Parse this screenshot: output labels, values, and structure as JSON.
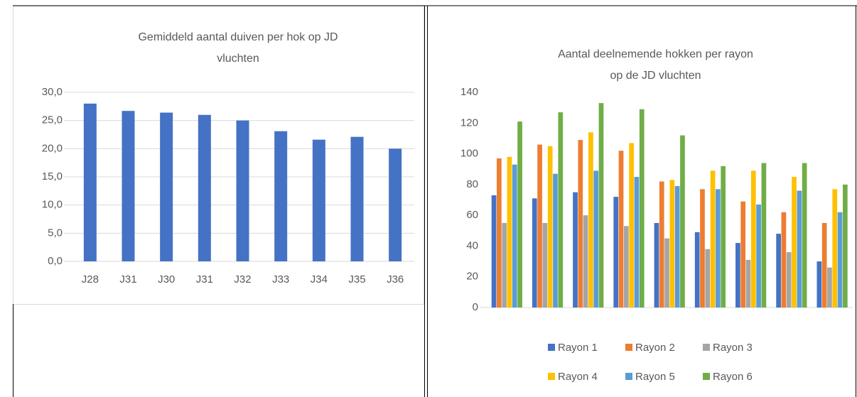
{
  "chart_data": [
    {
      "type": "bar",
      "title": "Gemiddeld aantal duiven per hok op JD vluchten",
      "categories": [
        "J28",
        "J31",
        "J30",
        "J31",
        "J32",
        "J33",
        "J34",
        "J35",
        "J36"
      ],
      "values": [
        28.0,
        26.7,
        26.4,
        26.0,
        25.0,
        23.1,
        21.6,
        22.1,
        20.0
      ],
      "color": "#4472c4",
      "ylim": [
        0,
        30
      ],
      "yticks": [
        {
          "value": 0,
          "label": "0,0"
        },
        {
          "value": 5,
          "label": "5,0"
        },
        {
          "value": 10,
          "label": "10,0"
        },
        {
          "value": 15,
          "label": "15,0"
        },
        {
          "value": 20,
          "label": "20,0"
        },
        {
          "value": 25,
          "label": "25,0"
        },
        {
          "value": 30,
          "label": "30,0"
        }
      ],
      "grid": true
    },
    {
      "type": "grouped_bar",
      "title": "Aantal deelnemende hokken per rayon op de JD vluchten",
      "categories": [
        null,
        null,
        null,
        null,
        null,
        null,
        null,
        null,
        null
      ],
      "series": [
        {
          "name": "Rayon 1",
          "color": "#4472c4",
          "values": [
            73,
            71,
            75,
            72,
            55,
            49,
            42,
            48,
            30
          ]
        },
        {
          "name": "Rayon 2",
          "color": "#ed7d31",
          "values": [
            97,
            106,
            109,
            102,
            82,
            77,
            69,
            62,
            55
          ]
        },
        {
          "name": "Rayon 3",
          "color": "#a5a5a5",
          "values": [
            55,
            55,
            60,
            53,
            45,
            38,
            31,
            36,
            26
          ]
        },
        {
          "name": "Rayon 4",
          "color": "#ffc000",
          "values": [
            98,
            105,
            114,
            107,
            83,
            89,
            89,
            85,
            77
          ]
        },
        {
          "name": "Rayon 5",
          "color": "#5b9bd5",
          "values": [
            93,
            87,
            89,
            85,
            79,
            77,
            67,
            76,
            62
          ]
        },
        {
          "name": "Rayon 6",
          "color": "#70ad47",
          "values": [
            121,
            127,
            133,
            129,
            112,
            92,
            94,
            94,
            80
          ]
        }
      ],
      "ylim": [
        0,
        140
      ],
      "yticks": [
        0,
        20,
        40,
        60,
        80,
        100,
        120,
        140
      ],
      "grid": false,
      "legend": "bottom"
    }
  ]
}
